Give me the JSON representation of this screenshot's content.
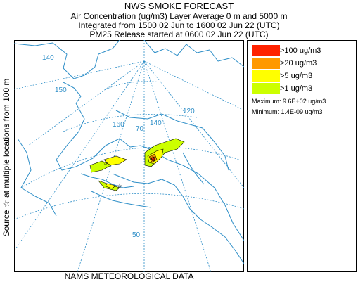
{
  "header": {
    "title": "NWS SMOKE FORECAST",
    "subtitle_1": "Air Concentration (ug/m3) Layer Average    0 m and  5000 m",
    "subtitle_2": "Integrated from 1500 02 Jun to 1600 02 Jun 22 (UTC)",
    "subtitle_3": "PM25 Release started at 0600 02 Jun 22 (UTC)"
  },
  "side_label": "Source ☆  at multiple locations     from  100 m",
  "footer": "NAMS METEOROLOGICAL DATA",
  "map": {
    "graticule_labels": [
      "140",
      "150",
      "160",
      "70",
      "140",
      "120",
      "50"
    ],
    "colors": {
      "coast": "#2f8fc8",
      "grid": "#2f8fc8",
      "level_100": "#ff2200",
      "level_20": "#ff9900",
      "level_5": "#ffff00",
      "level_1": "#ccff00"
    }
  },
  "legend": {
    "levels": [
      {
        "label": ">100 ug/m3",
        "color": "#ff2200"
      },
      {
        "label": ">20 ug/m3",
        "color": "#ff9900"
      },
      {
        "label": ">5 ug/m3",
        "color": "#ffff00"
      },
      {
        "label": ">1 ug/m3",
        "color": "#ccff00"
      }
    ],
    "maximum": "Maximum: 9.6E+02 ug/m3",
    "minimum": "Minimum: 1.4E-09 ug/m3"
  }
}
